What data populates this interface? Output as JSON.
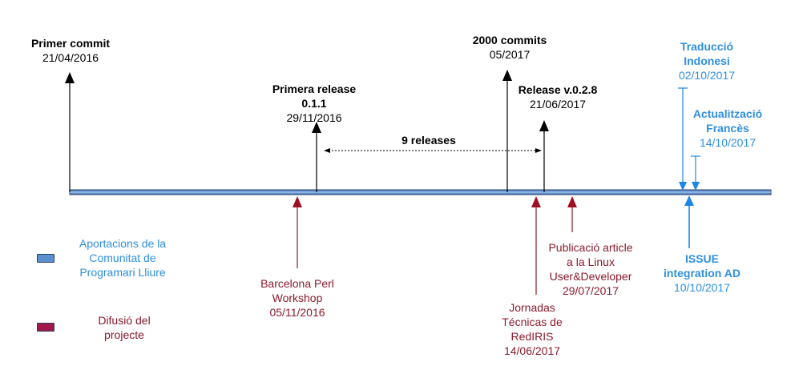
{
  "events_above": [
    {
      "title": "Primer commit",
      "date": "21/04/2016"
    },
    {
      "title": "Primera release",
      "title2": "0.1.1",
      "date": "29/11/2016"
    },
    {
      "title": "2000 commits",
      "date": "05/2017"
    },
    {
      "title": "Release v.0.2.8",
      "date": "21/06/2017"
    },
    {
      "title": "Traducció",
      "title2": "Indonesi",
      "date": "02/10/2017"
    },
    {
      "title": "Actualització",
      "title2": "Francès",
      "date": "14/10/2017"
    }
  ],
  "span_label": "9 releases",
  "events_below": [
    {
      "lines": [
        "Barcelona Perl",
        "Workshop",
        "05/11/2016"
      ]
    },
    {
      "lines": [
        "Jornadas",
        "Técnicas de",
        "RedIRIS",
        "14/06/2017"
      ]
    },
    {
      "lines": [
        "Publicació article",
        "a la Linux",
        "User&Developer",
        "29/07/2017"
      ]
    },
    {
      "title": "ISSUE",
      "title2": "integration AD",
      "date": "10/10/2017"
    }
  ],
  "legend": [
    {
      "lines": [
        "Aportacions de la",
        "Comunitat de",
        "Programari Lliure"
      ],
      "color": "#5a8fd0"
    },
    {
      "lines": [
        "Difusió del",
        "projecte"
      ],
      "color": "#a0174a"
    }
  ],
  "colors": {
    "timeline": "#5a8fd0",
    "community": "#2e8fe0",
    "diffusion": "#8b1a2b",
    "milestone": "#000000"
  }
}
